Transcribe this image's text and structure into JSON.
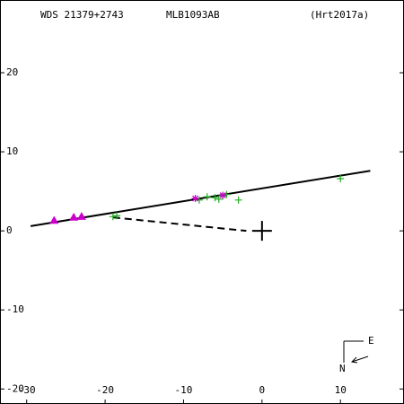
{
  "chart_data": {
    "type": "scatter",
    "header": [
      "WDS 21379+2743",
      "MLB1093AB",
      "(Hrt2017a)"
    ],
    "xlim": [
      -33.4,
      18.1
    ],
    "ylim": [
      -21.9,
      29.2
    ],
    "xticks": [
      -30,
      -20,
      -10,
      0,
      10
    ],
    "yticks": [
      -20,
      -10,
      0,
      10,
      20
    ],
    "lines": [
      {
        "style": "solid",
        "color": "#000000",
        "x": [
          -29.5,
          13.8
        ],
        "y": [
          0.6,
          7.6
        ]
      },
      {
        "style": "dashed",
        "color": "#000000",
        "x": [
          -19,
          -2
        ],
        "y": [
          1.7,
          0
        ]
      }
    ],
    "series": [
      {
        "marker": "plus",
        "color": "#22aa22",
        "x": [
          -19,
          -18.5,
          -8,
          -7,
          -6,
          -5.5,
          -5,
          -4.5,
          -3,
          10
        ],
        "y": [
          1.8,
          1.9,
          3.9,
          4.3,
          4.2,
          4.0,
          4.4,
          4.6,
          3.9,
          6.6
        ]
      },
      {
        "marker": "triangle",
        "color": "#cc00cc",
        "x": [
          -26.5,
          -24,
          -23
        ],
        "y": [
          1.3,
          1.7,
          1.8
        ]
      },
      {
        "marker": "star",
        "color": "#cc00cc",
        "x": [
          -8.5,
          -5
        ],
        "y": [
          4.1,
          4.5
        ]
      }
    ],
    "primary": {
      "x": 0,
      "y": 0
    },
    "compass": [
      "E",
      "N"
    ]
  }
}
